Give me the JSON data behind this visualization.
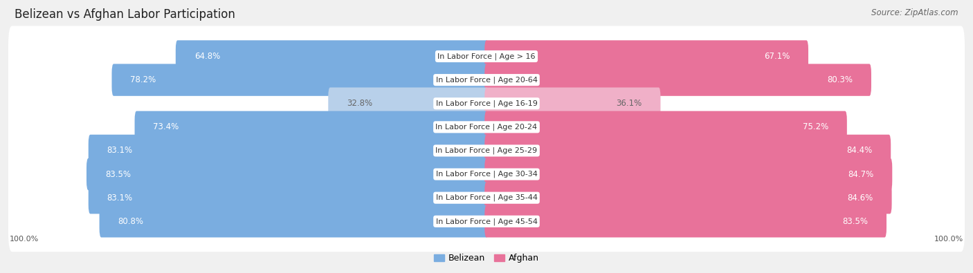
{
  "title": "Belizean vs Afghan Labor Participation",
  "source": "Source: ZipAtlas.com",
  "categories": [
    "In Labor Force | Age > 16",
    "In Labor Force | Age 20-64",
    "In Labor Force | Age 16-19",
    "In Labor Force | Age 20-24",
    "In Labor Force | Age 25-29",
    "In Labor Force | Age 30-34",
    "In Labor Force | Age 35-44",
    "In Labor Force | Age 45-54"
  ],
  "belizean_values": [
    64.8,
    78.2,
    32.8,
    73.4,
    83.1,
    83.5,
    83.1,
    80.8
  ],
  "afghan_values": [
    67.1,
    80.3,
    36.1,
    75.2,
    84.4,
    84.7,
    84.6,
    83.5
  ],
  "belizean_color_full": "#7aade0",
  "belizean_color_light": "#b8d0ea",
  "afghan_color_full": "#e8729a",
  "afghan_color_light": "#f0b0c8",
  "bg_color": "#f0f0f0",
  "row_bg": "#ffffff",
  "max_value": 100.0,
  "legend_belizean": "Belizean",
  "legend_afghan": "Afghan",
  "title_fontsize": 12,
  "source_fontsize": 8.5,
  "bar_label_fontsize": 8.5,
  "category_label_fontsize": 8,
  "axis_label_fontsize": 8,
  "legend_fontsize": 9
}
